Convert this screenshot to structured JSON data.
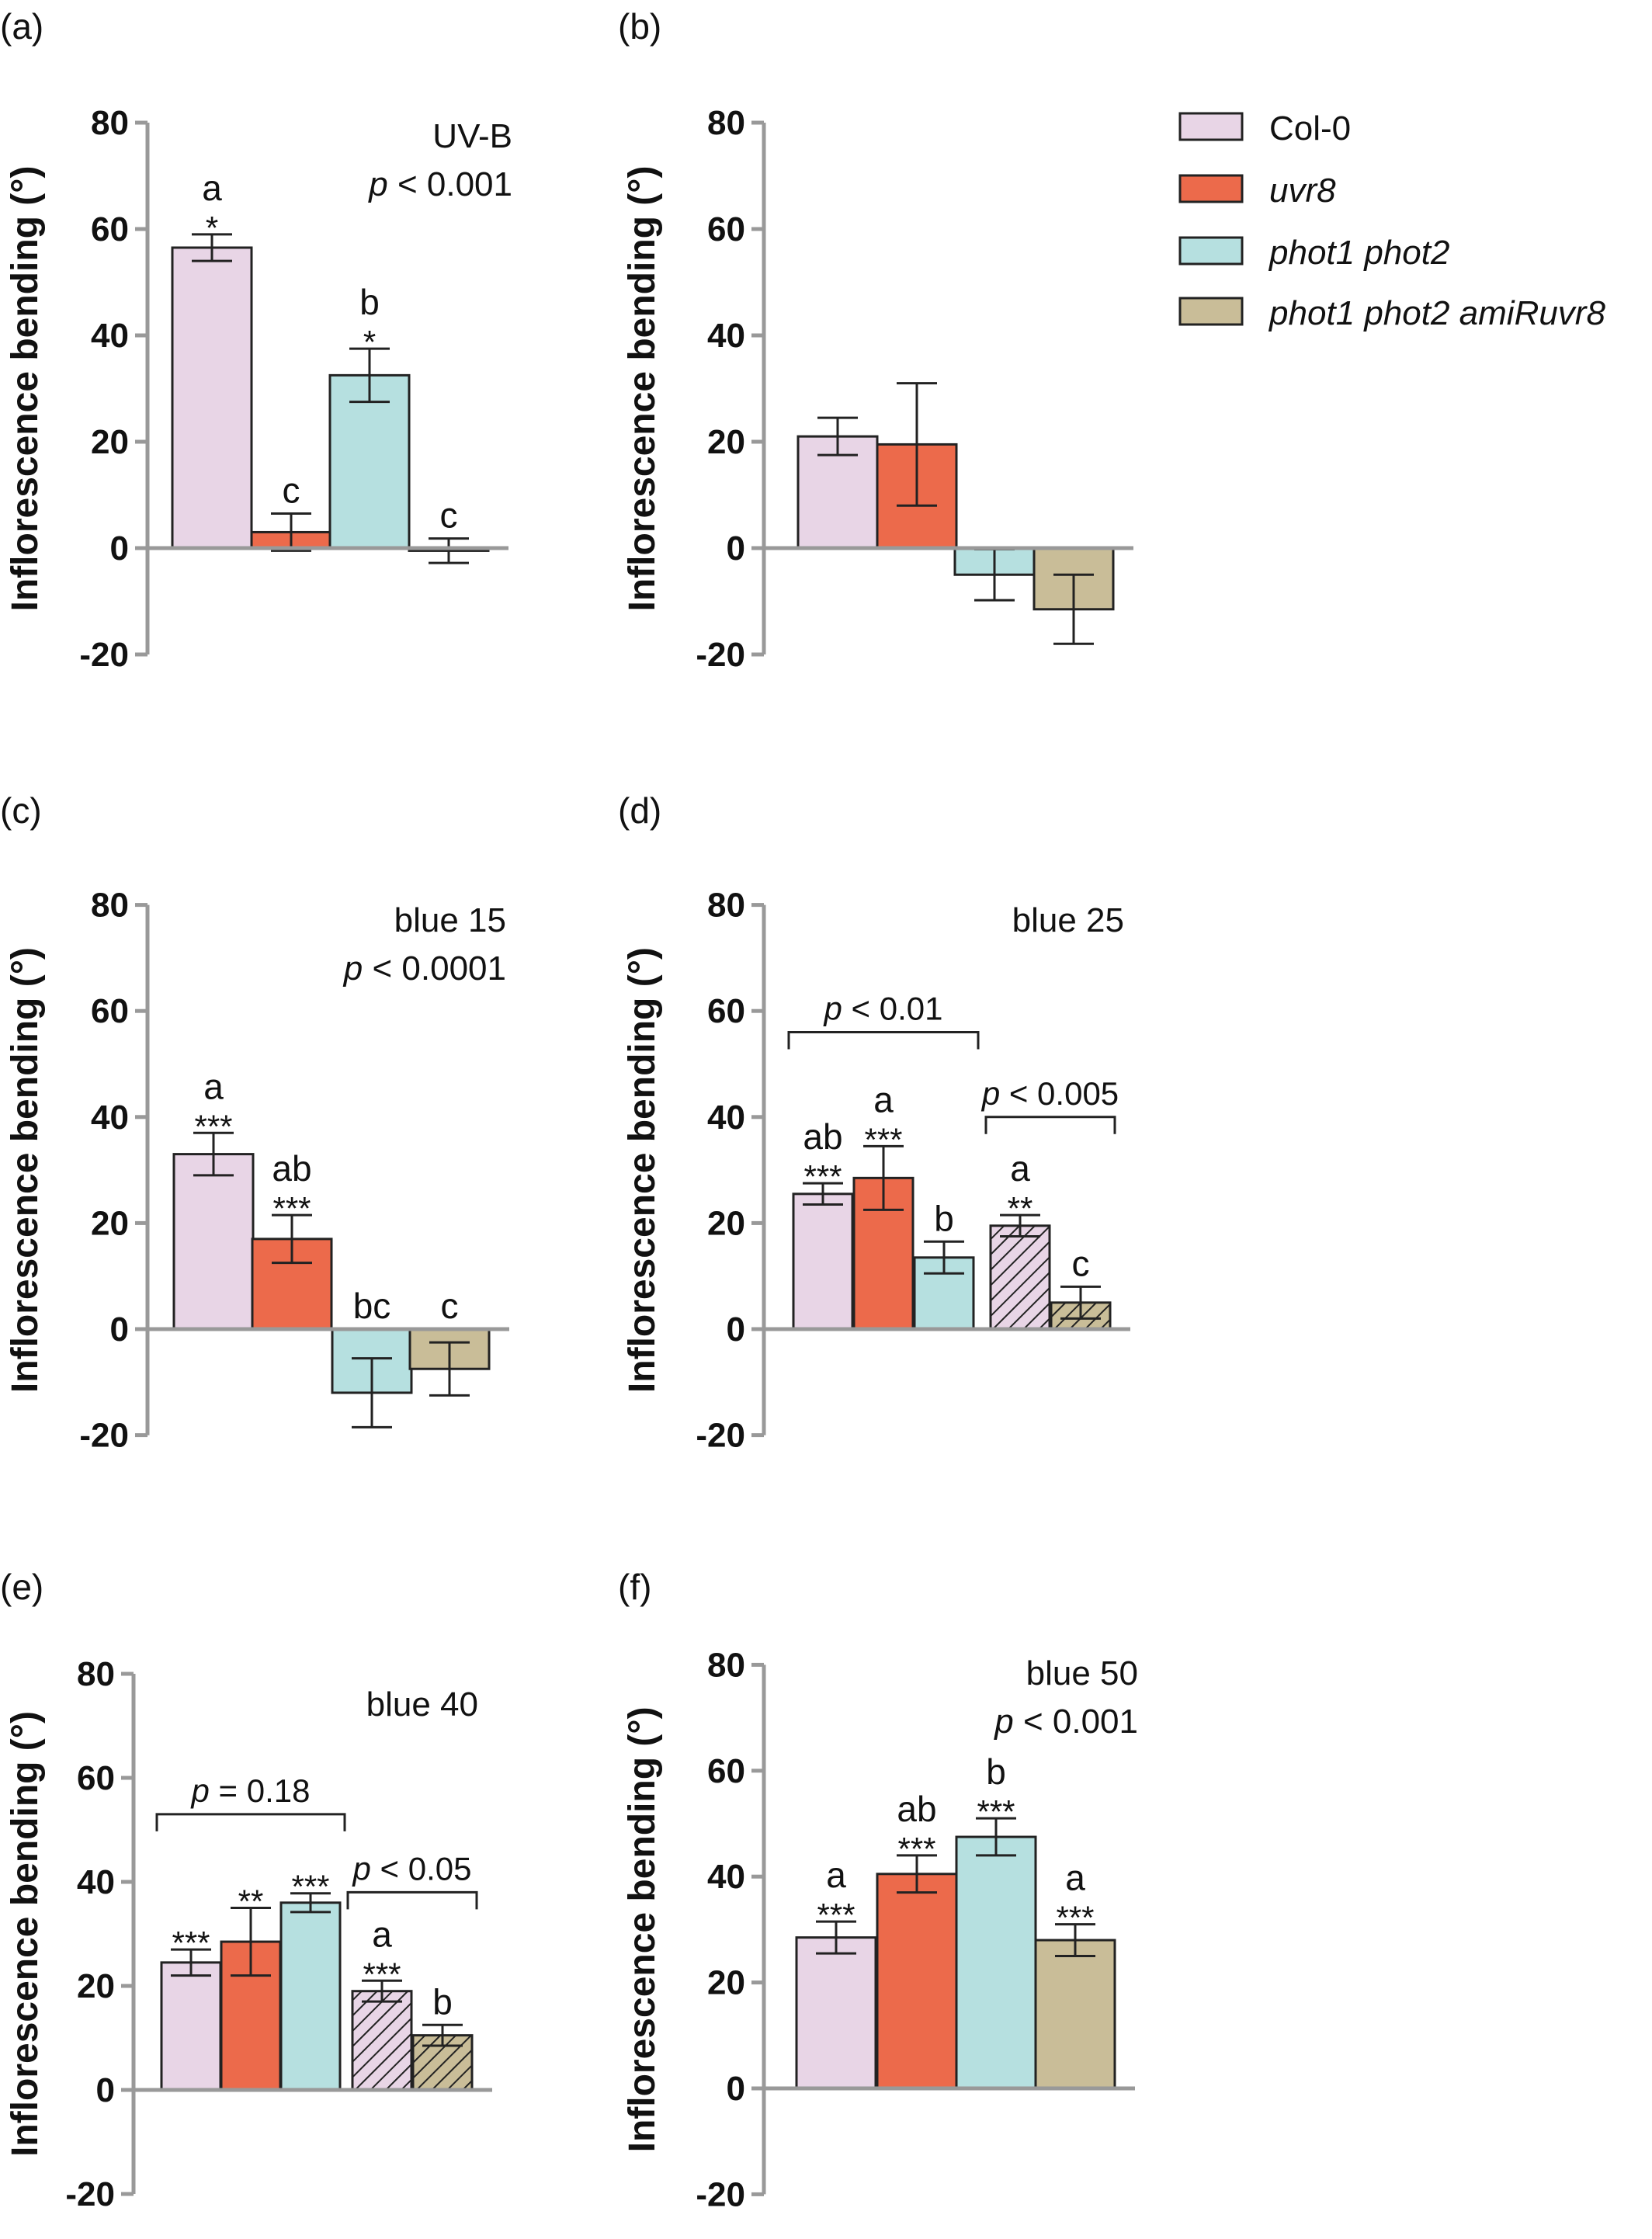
{
  "legend": [
    {
      "label": "Col-0",
      "italic": false,
      "color": "#e8d5e6"
    },
    {
      "label": "uvr8",
      "italic": true,
      "color": "#ec6a4b"
    },
    {
      "label": "phot1 phot2",
      "italic": true,
      "color": "#b6e0e0"
    },
    {
      "label": "phot1 phot2 amiRuvr8",
      "italic": true,
      "color": "#c9bd98"
    }
  ],
  "chart_data": [
    {
      "type": "bar",
      "panel": "(a)",
      "ylabel": "Inflorescence bending (°)",
      "ylim": [
        -20,
        80
      ],
      "yticks": [
        "-20",
        "0",
        "20",
        "40",
        "60",
        "80"
      ],
      "annotation": [
        "UV-B",
        "< 0.001"
      ],
      "italic_prefix": [
        "",
        "p"
      ],
      "bars": [
        {
          "value": 56.5,
          "err": 2.5,
          "sig": "*",
          "letter": "a",
          "pattern": "solid",
          "color": "#e8d5e6"
        },
        {
          "value": 3,
          "err": 3.5,
          "sig": "",
          "letter": "c",
          "pattern": "solid",
          "color": "#ec6a4b"
        },
        {
          "value": 32.5,
          "err": 5,
          "sig": "*",
          "letter": "b",
          "pattern": "solid",
          "color": "#b6e0e0"
        },
        {
          "value": -0.5,
          "err": 2.3,
          "sig": "",
          "letter": "c",
          "pattern": "solid",
          "color": "#c9bd98"
        }
      ],
      "brackets": []
    },
    {
      "type": "bar",
      "panel": "(b)",
      "ylabel": "Inflorescence bending (°)",
      "ylim": [
        -20,
        80
      ],
      "yticks": [
        "-20",
        "0",
        "20",
        "40",
        "60",
        "80"
      ],
      "annotation": [],
      "italic_prefix": [],
      "bars": [
        {
          "value": 21,
          "err": 3.5,
          "sig": "",
          "letter": "",
          "pattern": "solid",
          "color": "#e8d5e6"
        },
        {
          "value": 19.5,
          "err": 11.5,
          "sig": "",
          "letter": "",
          "pattern": "solid",
          "color": "#ec6a4b"
        },
        {
          "value": -5,
          "err": 4.8,
          "sig": "",
          "letter": "",
          "pattern": "solid",
          "color": "#b6e0e0"
        },
        {
          "value": -11.5,
          "err": 6.5,
          "sig": "",
          "letter": "",
          "pattern": "solid",
          "color": "#c9bd98"
        }
      ],
      "brackets": []
    },
    {
      "type": "bar",
      "panel": "(c)",
      "ylabel": "Inflorescence bending (°)",
      "ylim": [
        -20,
        80
      ],
      "yticks": [
        "-20",
        "0",
        "20",
        "40",
        "60",
        "80"
      ],
      "annotation": [
        "blue 15",
        "< 0.0001"
      ],
      "italic_prefix": [
        "",
        "p"
      ],
      "bars": [
        {
          "value": 33,
          "err": 4,
          "sig": "***",
          "letter": "a",
          "pattern": "solid",
          "color": "#e8d5e6"
        },
        {
          "value": 17,
          "err": 4.5,
          "sig": "***",
          "letter": "ab",
          "pattern": "solid",
          "color": "#ec6a4b"
        },
        {
          "value": -12,
          "err": 6.5,
          "sig": "",
          "letter": "bc",
          "pattern": "solid",
          "color": "#b6e0e0"
        },
        {
          "value": -7.5,
          "err": 5,
          "sig": "",
          "letter": "c",
          "pattern": "solid",
          "color": "#c9bd98"
        }
      ],
      "brackets": []
    },
    {
      "type": "bar",
      "panel": "(d)",
      "ylabel": "Inflorescence bending (°)",
      "ylim": [
        -20,
        80
      ],
      "yticks": [
        "-20",
        "0",
        "20",
        "40",
        "60",
        "80"
      ],
      "annotation": [
        "blue 25"
      ],
      "italic_prefix": [
        ""
      ],
      "bars": [
        {
          "value": 25.5,
          "err": 2,
          "sig": "***",
          "letter": "ab",
          "pattern": "solid",
          "color": "#e8d5e6"
        },
        {
          "value": 28.5,
          "err": 6,
          "sig": "***",
          "letter": "a",
          "pattern": "solid",
          "color": "#ec6a4b"
        },
        {
          "value": 13.5,
          "err": 3,
          "sig": "",
          "letter": "b",
          "pattern": "solid",
          "color": "#b6e0e0"
        },
        {
          "value": 19.5,
          "err": 2,
          "sig": "**",
          "letter": "a",
          "pattern": "hatch",
          "color": "#e8d5e6"
        },
        {
          "value": 5,
          "err": 3,
          "sig": "",
          "letter": "c",
          "pattern": "hatch",
          "color": "#c9bd98"
        }
      ],
      "brackets": [
        {
          "from": 0,
          "to": 2,
          "y": 56,
          "p": "p",
          "text": "< 0.01"
        },
        {
          "from": 3,
          "to": 4,
          "y": 40,
          "p": "p",
          "text": "< 0.005"
        }
      ]
    },
    {
      "type": "bar",
      "panel": "(e)",
      "ylabel": "Inflorescence bending (°)",
      "ylim": [
        -20,
        80
      ],
      "yticks": [
        "-20",
        "0",
        "20",
        "40",
        "60",
        "80"
      ],
      "annotation": [
        "blue 40"
      ],
      "italic_prefix": [
        ""
      ],
      "bars": [
        {
          "value": 24.5,
          "err": 2.5,
          "sig": "***",
          "letter": "",
          "pattern": "solid",
          "color": "#e8d5e6"
        },
        {
          "value": 28.5,
          "err": 6.5,
          "sig": "**",
          "letter": "",
          "pattern": "solid",
          "color": "#ec6a4b"
        },
        {
          "value": 36,
          "err": 1.8,
          "sig": "***",
          "letter": "",
          "pattern": "solid",
          "color": "#b6e0e0"
        },
        {
          "value": 19,
          "err": 2,
          "sig": "***",
          "letter": "a",
          "pattern": "hatch",
          "color": "#e8d5e6"
        },
        {
          "value": 10.5,
          "err": 2,
          "sig": "",
          "letter": "b",
          "pattern": "hatch",
          "color": "#c9bd98"
        }
      ],
      "brackets": [
        {
          "from": 0,
          "to": 2,
          "y": 53,
          "p": "p",
          "text": "= 0.18"
        },
        {
          "from": 3,
          "to": 4,
          "y": 38,
          "p": "p",
          "text": "< 0.05"
        }
      ]
    },
    {
      "type": "bar",
      "panel": "(f)",
      "ylabel": "Inflorescence bending (°)",
      "ylim": [
        -20,
        80
      ],
      "yticks": [
        "-20",
        "0",
        "20",
        "40",
        "60",
        "80"
      ],
      "annotation": [
        "blue 50",
        "< 0.001"
      ],
      "italic_prefix": [
        "",
        "p"
      ],
      "bars": [
        {
          "value": 28.5,
          "err": 3,
          "sig": "***",
          "letter": "a",
          "pattern": "solid",
          "color": "#e8d5e6"
        },
        {
          "value": 40.5,
          "err": 3.5,
          "sig": "***",
          "letter": "ab",
          "pattern": "solid",
          "color": "#ec6a4b"
        },
        {
          "value": 47.5,
          "err": 3.5,
          "sig": "***",
          "letter": "b",
          "pattern": "solid",
          "color": "#b6e0e0"
        },
        {
          "value": 28,
          "err": 3,
          "sig": "***",
          "letter": "a",
          "pattern": "solid",
          "color": "#c9bd98"
        }
      ],
      "brackets": []
    }
  ]
}
